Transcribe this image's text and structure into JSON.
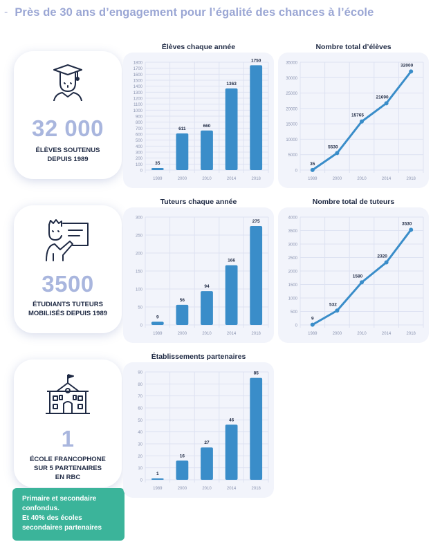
{
  "header": {
    "dash": "-",
    "title": "Près de 30 ans d’engagement pour l’égalité des chances à l’école"
  },
  "cards": [
    {
      "big": "32 000",
      "caption": [
        "ÉLÈVES SOUTENUS",
        "DEPUIS 1989"
      ],
      "icon": "graduate-student-icon"
    },
    {
      "big": "3500",
      "caption": [
        "ÉTUDIANTS TUTEURS",
        "MOBILISÉS DEPUIS 1989"
      ],
      "icon": "tutor-whiteboard-icon"
    },
    {
      "big": "1",
      "caption": [
        "ÉCOLE FRANCOPHONE",
        "SUR 5 PARTENAIRES",
        "EN RBC"
      ],
      "icon": "school-building-icon"
    }
  ],
  "note": {
    "lines": [
      "Primaire et secondaire",
      "confondus.",
      "Et 40% des écoles",
      "secondaires partenaires"
    ]
  },
  "colors": {
    "accent": "#3a8dc9",
    "big_number": "#a9b6de",
    "note_bg": "#3bb49a",
    "panel_bg": "#f2f4fb",
    "header": "#9aa6d4"
  },
  "chart_data": [
    {
      "id": "eleves-annee",
      "type": "bar",
      "title": "Élèves chaque année",
      "categories": [
        "1989",
        "2000",
        "2010",
        "2014",
        "2018"
      ],
      "values": [
        35,
        611,
        660,
        1363,
        1750
      ],
      "yticks": [
        0,
        100,
        200,
        300,
        400,
        500,
        600,
        700,
        800,
        900,
        1000,
        1100,
        1200,
        1300,
        1400,
        1500,
        1600,
        1700,
        1800
      ],
      "ylim": [
        0,
        1800
      ],
      "grid": true
    },
    {
      "id": "eleves-total",
      "type": "line",
      "title": "Nombre total d’élèves",
      "categories": [
        "1989",
        "2000",
        "2010",
        "2014",
        "2018"
      ],
      "values": [
        35,
        5530,
        15765,
        21690,
        32000
      ],
      "yticks": [
        0,
        5000,
        10000,
        15000,
        20000,
        25000,
        30000,
        35000
      ],
      "ylim": [
        0,
        35000
      ],
      "grid": true
    },
    {
      "id": "tuteurs-annee",
      "type": "bar",
      "title": "Tuteurs chaque année",
      "categories": [
        "1989",
        "2000",
        "2010",
        "2014",
        "2018"
      ],
      "values": [
        9,
        56,
        94,
        166,
        275
      ],
      "yticks": [
        0,
        50,
        100,
        150,
        200,
        250,
        300
      ],
      "ylim": [
        0,
        300
      ],
      "grid": true
    },
    {
      "id": "tuteurs-total",
      "type": "line",
      "title": "Nombre total de tuteurs",
      "categories": [
        "1989",
        "2000",
        "2010",
        "2014",
        "2018"
      ],
      "values": [
        9,
        532,
        1580,
        2320,
        3530
      ],
      "yticks": [
        0,
        500,
        1000,
        1500,
        2000,
        2500,
        3000,
        3500,
        4000
      ],
      "ylim": [
        0,
        4000
      ],
      "grid": true
    },
    {
      "id": "etablissements",
      "type": "bar",
      "title": "Établissements partenaires",
      "categories": [
        "1989",
        "2000",
        "2010",
        "2014",
        "2018"
      ],
      "values": [
        1,
        16,
        27,
        46,
        85
      ],
      "yticks": [
        0,
        10,
        20,
        30,
        40,
        50,
        60,
        70,
        80,
        90
      ],
      "ylim": [
        0,
        90
      ],
      "grid": true
    }
  ]
}
